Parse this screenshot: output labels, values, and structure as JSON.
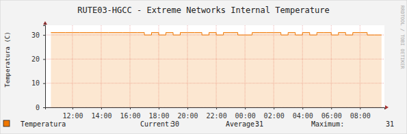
{
  "chart_data": {
    "type": "area",
    "title": "RUTE03-HGCC - Extreme Networks Internal Temperature",
    "ylabel": "Temperatura (C)",
    "annotations": [
      "RRDTOOL / TOBI OETIKER"
    ],
    "x": [
      10.5,
      11,
      11.5,
      12,
      12.5,
      13,
      13.5,
      14,
      14.5,
      15,
      15.5,
      16,
      16.5,
      17,
      17.5,
      18,
      18.5,
      19,
      19.5,
      20,
      20.5,
      21,
      21.5,
      22,
      22.5,
      23,
      23.5,
      24,
      24.5,
      25,
      25.5,
      26,
      26.5,
      27,
      27.5,
      28,
      28.5,
      29,
      29.5,
      30,
      30.5,
      31,
      31.5,
      32,
      32.5,
      33,
      33.5
    ],
    "series": [
      {
        "name": "Temperatura",
        "color": "#f07800",
        "values": [
          31,
          31,
          31,
          31,
          31,
          31,
          31,
          31,
          31,
          31,
          31,
          31,
          31,
          31,
          30,
          31,
          30,
          31,
          30,
          31,
          31,
          31,
          30,
          31,
          30,
          31,
          31,
          30,
          30,
          31,
          31,
          31,
          31,
          30,
          31,
          30,
          31,
          30,
          31,
          31,
          30,
          31,
          30,
          31,
          31,
          30,
          30
        ]
      }
    ],
    "xlim": [
      10.1,
      33.7
    ],
    "xticks": [
      {
        "value": 12,
        "label": "12:00"
      },
      {
        "value": 14,
        "label": "14:00"
      },
      {
        "value": 16,
        "label": "16:00"
      },
      {
        "value": 18,
        "label": "18:00"
      },
      {
        "value": 20,
        "label": "20:00"
      },
      {
        "value": 22,
        "label": "22:00"
      },
      {
        "value": 24,
        "label": "00:00"
      },
      {
        "value": 26,
        "label": "02:00"
      },
      {
        "value": 28,
        "label": "04:00"
      },
      {
        "value": 30,
        "label": "06:00"
      },
      {
        "value": 32,
        "label": "08:00"
      }
    ],
    "ylim": [
      0,
      34
    ],
    "yticks": [
      0,
      10,
      20,
      30
    ],
    "grid": true,
    "legend": "bottom",
    "legend_stats": [
      {
        "label": "Current:",
        "value": 30
      },
      {
        "label": "Average:",
        "value": 31
      },
      {
        "label": "Maximum:",
        "value": 31
      }
    ]
  }
}
